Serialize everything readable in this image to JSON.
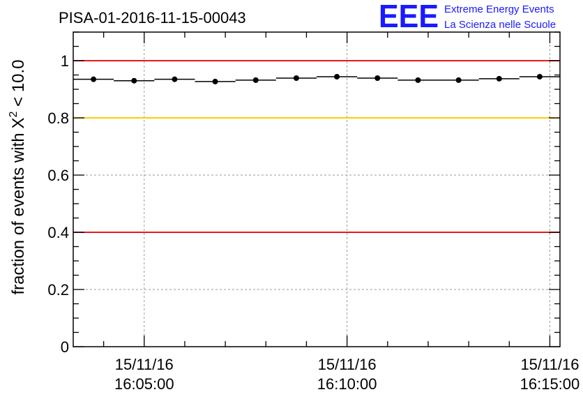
{
  "colors": {
    "threshold_high": "#e31a1c",
    "threshold_mid": "#ffcc00",
    "threshold_low": "#e31a1c",
    "data": "#000000",
    "logo": "#1a1aff",
    "grid": "#9a9a9a"
  },
  "logo": {
    "mark": "EEE",
    "line1": "Extreme Energy Events",
    "line2": "La Scienza nelle Scuole"
  },
  "chart_data": {
    "type": "scatter",
    "title": "PISA-01-2016-11-15-00043",
    "xlabel": "",
    "ylabel": "fraction of events with",
    "ylabel_tail": " < 10.0",
    "ylabel_symbol": "X",
    "ylabel_superscript": "2",
    "xlim": [
      "2016-11-15 16:03:15",
      "2016-11-15 16:15:15"
    ],
    "ylim": [
      0,
      1.1
    ],
    "y_ticks": [
      {
        "value": 0,
        "label": "0"
      },
      {
        "value": 0.2,
        "label": "0.2"
      },
      {
        "value": 0.4,
        "label": "0.4"
      },
      {
        "value": 0.6,
        "label": "0.6"
      },
      {
        "value": 0.8,
        "label": "0.8"
      },
      {
        "value": 1,
        "label": "1"
      }
    ],
    "x_ticks": [
      {
        "value": "2016-11-15 16:05:00",
        "date": "15/11/16",
        "time": "16:05:00"
      },
      {
        "value": "2016-11-15 16:10:00",
        "date": "15/11/16",
        "time": "16:10:00"
      },
      {
        "value": "2016-11-15 16:15:00",
        "date": "15/11/16",
        "time": "16:15:00"
      }
    ],
    "grid": true,
    "threshold_lines": [
      {
        "y": 1.0,
        "color": "red"
      },
      {
        "y": 0.8,
        "color": "yellow"
      },
      {
        "y": 0.4,
        "color": "red"
      }
    ],
    "series": [
      {
        "points": [
          {
            "x": "2016-11-15 16:03:45",
            "y": 0.935
          },
          {
            "x": "2016-11-15 16:04:45",
            "y": 0.93
          },
          {
            "x": "2016-11-15 16:05:45",
            "y": 0.935
          },
          {
            "x": "2016-11-15 16:06:45",
            "y": 0.927
          },
          {
            "x": "2016-11-15 16:07:45",
            "y": 0.932
          },
          {
            "x": "2016-11-15 16:08:45",
            "y": 0.939
          },
          {
            "x": "2016-11-15 16:09:45",
            "y": 0.944
          },
          {
            "x": "2016-11-15 16:10:45",
            "y": 0.939
          },
          {
            "x": "2016-11-15 16:11:45",
            "y": 0.932
          },
          {
            "x": "2016-11-15 16:12:45",
            "y": 0.932
          },
          {
            "x": "2016-11-15 16:13:45",
            "y": 0.937
          },
          {
            "x": "2016-11-15 16:14:45",
            "y": 0.944
          }
        ]
      }
    ]
  }
}
